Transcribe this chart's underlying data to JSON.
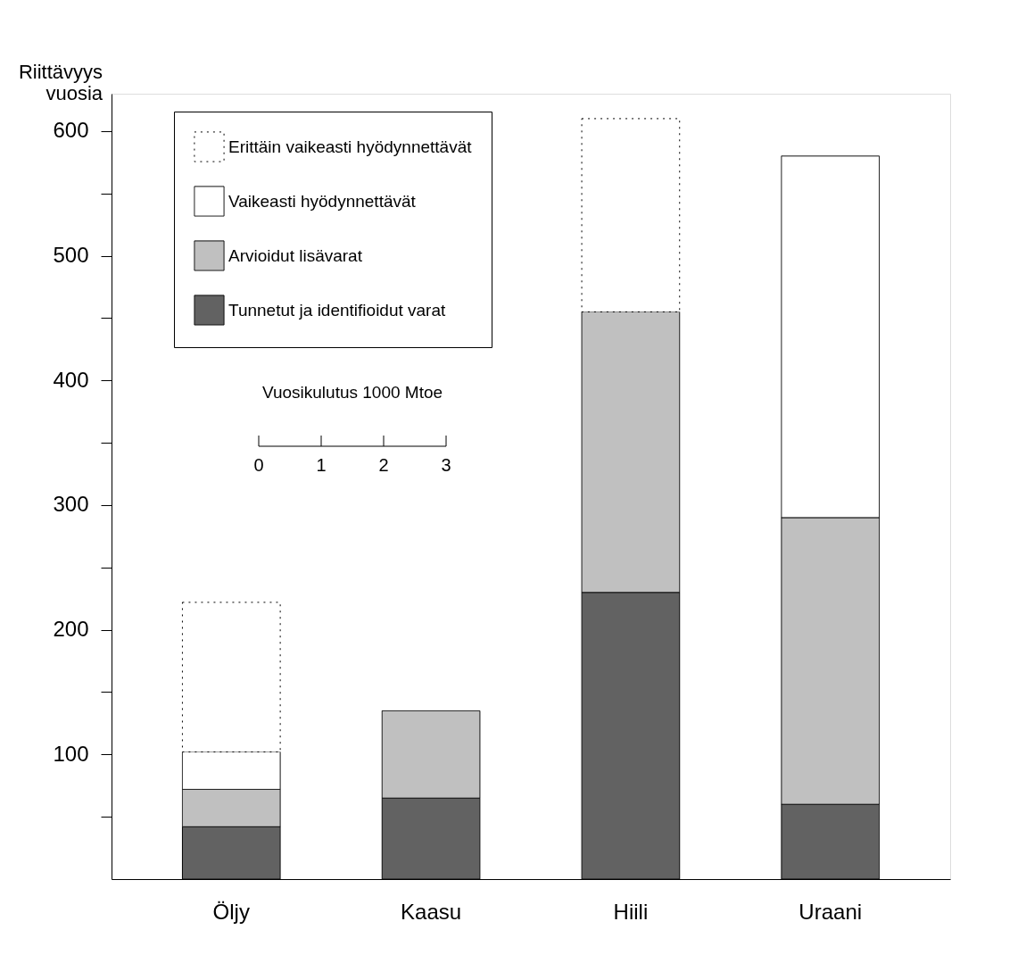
{
  "chart_data": {
    "type": "bar",
    "stacked": true,
    "ylabel": "Riittävyys vuosia",
    "categories": [
      "Öljy",
      "Kaasu",
      "Hiili",
      "Uraani"
    ],
    "series": [
      {
        "name": "Tunnetut ja identifioidut varat",
        "color": "#626262",
        "values": [
          42,
          65,
          230,
          60
        ]
      },
      {
        "name": "Arvioidut lisävarat",
        "color": "#c0c0c0",
        "values": [
          30,
          70,
          225,
          230
        ]
      },
      {
        "name": "Vaikeasti hyödynnettävät",
        "color": "#ffffff",
        "values": [
          30,
          null,
          null,
          290
        ]
      },
      {
        "name": "Erittäin vaikeasti hyödynnettävät",
        "color": "#ffffff",
        "line_style": "dotted",
        "values": [
          120,
          null,
          155,
          null
        ]
      }
    ],
    "ylim": [
      0,
      630
    ],
    "yticks": [
      {
        "value": 50,
        "label": null
      },
      100,
      {
        "value": 150,
        "label": null
      },
      200,
      {
        "value": 250,
        "label": null
      },
      300,
      {
        "value": 350,
        "label": null
      },
      400,
      {
        "value": 450,
        "label": null
      },
      500,
      {
        "value": 550,
        "label": null
      },
      600
    ],
    "grid": false,
    "legend": "top left",
    "annotations": [
      "Vuosikulutus 1000 Mtoe",
      "0",
      "1",
      "2",
      "3"
    ]
  }
}
